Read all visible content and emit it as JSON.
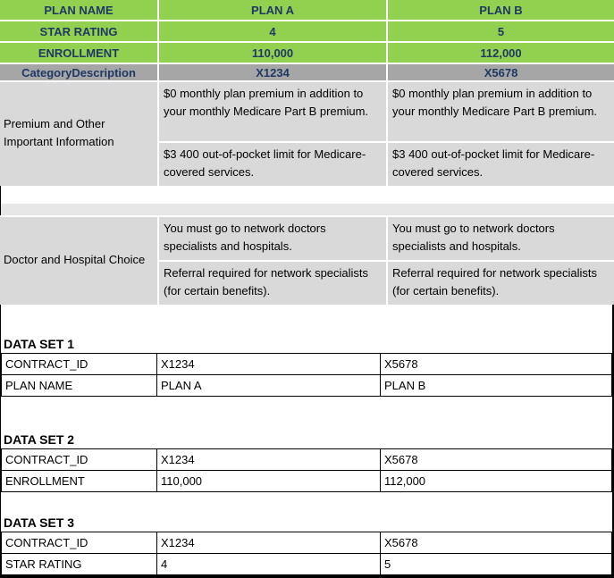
{
  "colors": {
    "green": "#92D050",
    "header_text_navy": "#1F3864",
    "category_row_gray": "#A6A6A6",
    "section_gray": "#D9D9D9",
    "spacer_gray": "#E7E7E7",
    "border_black": "#000000",
    "text_black": "#000000",
    "background": "#FFFFFF"
  },
  "comparison": {
    "header_rows": [
      {
        "label": "PLAN NAME",
        "a": "PLAN A",
        "b": "PLAN B"
      },
      {
        "label": "STAR RATING",
        "a": "4",
        "b": "5"
      },
      {
        "label": "ENROLLMENT",
        "a": "110,000",
        "b": "112,000"
      }
    ],
    "category_row": {
      "label": "CategoryDescription",
      "a": "X1234",
      "b": "X5678"
    },
    "sections": [
      {
        "label": "Premium and Other Important Information",
        "rows": [
          {
            "a": "$0 monthly plan premium in addition to your monthly Medicare Part B premium.",
            "b": "$0 monthly plan premium in addition to your monthly Medicare Part B premium."
          },
          {
            "a": "$3 400 out-of-pocket limit for Medicare-covered services.",
            "b": "$3 400 out-of-pocket limit for Medicare-covered services."
          }
        ]
      },
      {
        "label": "Doctor and Hospital Choice",
        "rows": [
          {
            "a": "You must go to network doctors specialists and hospitals.",
            "b": "You must go to network doctors specialists and hospitals."
          },
          {
            "a": "Referral required for network specialists (for certain benefits).",
            "b": "Referral required for network specialists (for certain benefits)."
          }
        ]
      }
    ]
  },
  "data_sets": [
    {
      "title": "DATA SET 1",
      "rows": [
        {
          "label": "CONTRACT_ID",
          "a": "X1234",
          "b": "X5678"
        },
        {
          "label": "PLAN NAME",
          "a": "PLAN A",
          "b": "PLAN B"
        }
      ]
    },
    {
      "title": "DATA SET 2",
      "rows": [
        {
          "label": "CONTRACT_ID",
          "a": "X1234",
          "b": "X5678"
        },
        {
          "label": "ENROLLMENT",
          "a": "110,000",
          "b": "112,000"
        }
      ]
    },
    {
      "title": "DATA SET 3",
      "rows": [
        {
          "label": "CONTRACT_ID",
          "a": "X1234",
          "b": "X5678"
        },
        {
          "label": "STAR RATING",
          "a": "4",
          "b": "5"
        }
      ]
    }
  ]
}
